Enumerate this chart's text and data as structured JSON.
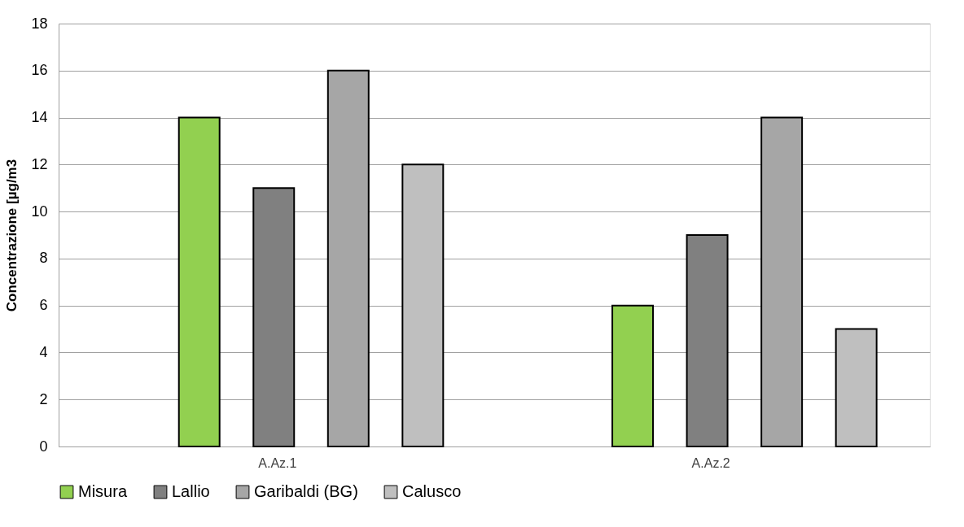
{
  "chart_data": {
    "type": "bar",
    "ylabel": "Concentrazione [µg/m3",
    "categories": [
      "A.Az.1",
      "A.Az.2"
    ],
    "series": [
      {
        "name": "Misura",
        "color": "#92d050",
        "values": [
          14,
          6
        ]
      },
      {
        "name": "Lallio",
        "color": "#808080",
        "values": [
          11,
          9
        ]
      },
      {
        "name": "Garibaldi (BG)",
        "color": "#a6a6a6",
        "values": [
          16,
          14
        ]
      },
      {
        "name": "Calusco",
        "color": "#bfbfbf",
        "values": [
          12,
          5
        ]
      }
    ],
    "ylim": [
      0,
      18
    ],
    "yticks": [
      0,
      2,
      4,
      6,
      8,
      10,
      12,
      14,
      16,
      18
    ],
    "grid": "y",
    "legend": "bottom"
  }
}
